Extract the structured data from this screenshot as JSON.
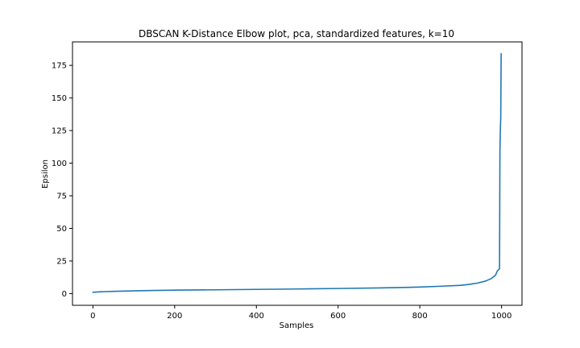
{
  "chart_data": {
    "type": "line",
    "title": "DBSCAN K-Distance Elbow plot, pca, standardized features, k=10",
    "xlabel": "Samples",
    "ylabel": "Epsilon",
    "xlim": [
      -50,
      1050
    ],
    "ylim": [
      -9,
      193
    ],
    "xticks": [
      0,
      200,
      400,
      600,
      800,
      1000
    ],
    "yticks": [
      0,
      25,
      50,
      75,
      100,
      125,
      150,
      175
    ],
    "grid": false,
    "legend": "none",
    "series": [
      {
        "color": "#1f77b4",
        "x": [
          0,
          20,
          50,
          100,
          150,
          200,
          300,
          400,
          500,
          600,
          700,
          750,
          800,
          850,
          900,
          920,
          940,
          960,
          975,
          985,
          990,
          995,
          996,
          997,
          998,
          999
        ],
        "y": [
          1.0,
          1.4,
          1.7,
          2.1,
          2.4,
          2.6,
          2.9,
          3.2,
          3.5,
          3.9,
          4.3,
          4.6,
          5.0,
          5.6,
          6.3,
          7.0,
          8.0,
          9.5,
          11.5,
          14.0,
          17.5,
          19.0,
          110.0,
          125.0,
          135.0,
          184.0
        ]
      }
    ]
  }
}
